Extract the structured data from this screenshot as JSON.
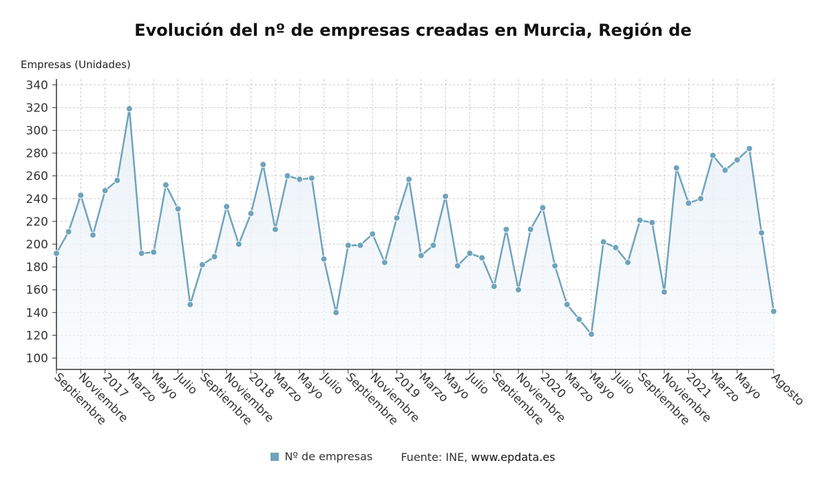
{
  "title": "Evolución del nº de empresas creadas en Murcia, Región de",
  "legend": {
    "series_label": "Nº de empresas",
    "source_prefix": "Fuente: INE, ",
    "source_site": "www.epdata.es"
  },
  "colors": {
    "line": "#6fa3bd",
    "marker": "#6fa3bd",
    "fill_top": "#e6eff6",
    "grid": "#c8c8c8",
    "axis": "#333333"
  },
  "chart_data": {
    "type": "area",
    "title": "Evolución del nº de empresas creadas en Murcia, Región de",
    "ylabel": "Empresas (Unidades)",
    "xlabel": "",
    "ylim": [
      90,
      345
    ],
    "yticks": [
      100,
      120,
      140,
      160,
      180,
      200,
      220,
      240,
      260,
      280,
      300,
      320,
      340
    ],
    "grid": true,
    "x": [
      "2016-09",
      "2016-10",
      "2016-11",
      "2016-12",
      "2017-01",
      "2017-02",
      "2017-03",
      "2017-04",
      "2017-05",
      "2017-06",
      "2017-07",
      "2017-08",
      "2017-09",
      "2017-10",
      "2017-11",
      "2017-12",
      "2018-01",
      "2018-02",
      "2018-03",
      "2018-04",
      "2018-05",
      "2018-06",
      "2018-07",
      "2018-08",
      "2018-09",
      "2018-10",
      "2018-11",
      "2018-12",
      "2019-01",
      "2019-02",
      "2019-03",
      "2019-04",
      "2019-05",
      "2019-06",
      "2019-07",
      "2019-08",
      "2019-09",
      "2019-10",
      "2019-11",
      "2019-12",
      "2020-01",
      "2020-02",
      "2020-03",
      "2020-04",
      "2020-05",
      "2020-06",
      "2020-07",
      "2020-08",
      "2020-09",
      "2020-10",
      "2020-11",
      "2020-12",
      "2021-01",
      "2021-02",
      "2021-03",
      "2021-04",
      "2021-05",
      "2021-06",
      "2021-07",
      "2021-08"
    ],
    "tick_labels": [
      {
        "x": "2016-09",
        "label": "Septiembre"
      },
      {
        "x": "2016-11",
        "label": "Noviembre"
      },
      {
        "x": "2017-01",
        "label": "2017"
      },
      {
        "x": "2017-03",
        "label": "Marzo"
      },
      {
        "x": "2017-05",
        "label": "Mayo"
      },
      {
        "x": "2017-07",
        "label": "Julio"
      },
      {
        "x": "2017-09",
        "label": "Septiembre"
      },
      {
        "x": "2017-11",
        "label": "Noviembre"
      },
      {
        "x": "2018-01",
        "label": "2018"
      },
      {
        "x": "2018-03",
        "label": "Marzo"
      },
      {
        "x": "2018-05",
        "label": "Mayo"
      },
      {
        "x": "2018-07",
        "label": "Julio"
      },
      {
        "x": "2018-09",
        "label": "Septiembre"
      },
      {
        "x": "2018-11",
        "label": "Noviembre"
      },
      {
        "x": "2019-01",
        "label": "2019"
      },
      {
        "x": "2019-03",
        "label": "Marzo"
      },
      {
        "x": "2019-05",
        "label": "Mayo"
      },
      {
        "x": "2019-07",
        "label": "Julio"
      },
      {
        "x": "2019-09",
        "label": "Septiembre"
      },
      {
        "x": "2019-11",
        "label": "Noviembre"
      },
      {
        "x": "2020-01",
        "label": "2020"
      },
      {
        "x": "2020-03",
        "label": "Marzo"
      },
      {
        "x": "2020-05",
        "label": "Mayo"
      },
      {
        "x": "2020-07",
        "label": "Julio"
      },
      {
        "x": "2020-09",
        "label": "Septiembre"
      },
      {
        "x": "2020-11",
        "label": "Noviembre"
      },
      {
        "x": "2021-01",
        "label": "2021"
      },
      {
        "x": "2021-03",
        "label": "Marzo"
      },
      {
        "x": "2021-05",
        "label": "Mayo"
      },
      {
        "x": "2021-08",
        "label": "Agosto"
      }
    ],
    "series": [
      {
        "name": "Nº de empresas",
        "values": [
          192,
          211,
          243,
          208,
          247,
          256,
          319,
          192,
          193,
          252,
          231,
          147,
          182,
          189,
          233,
          200,
          227,
          270,
          213,
          260,
          257,
          258,
          187,
          140,
          199,
          199,
          209,
          184,
          223,
          257,
          190,
          199,
          242,
          181,
          192,
          188,
          163,
          213,
          160,
          213,
          232,
          181,
          147,
          134,
          121,
          202,
          197,
          184,
          221,
          219,
          158,
          267,
          236,
          240,
          278,
          265,
          274,
          284,
          210,
          141
        ]
      }
    ]
  }
}
